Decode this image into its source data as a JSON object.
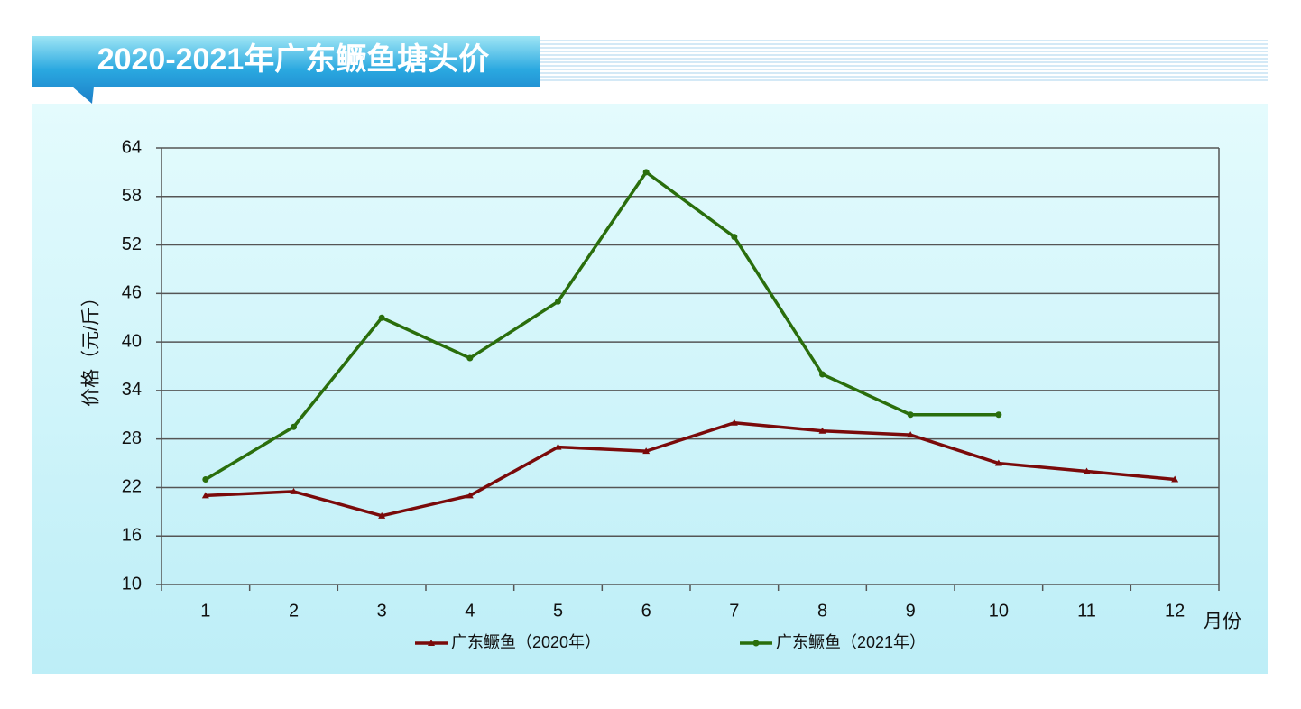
{
  "chart_data": {
    "type": "line",
    "title": "2020-2021年广东鳜鱼塘头价",
    "y_label": "价格（元/斤）",
    "x_label": "月份",
    "categories": [
      "1",
      "2",
      "3",
      "4",
      "5",
      "6",
      "7",
      "8",
      "9",
      "10",
      "11",
      "12"
    ],
    "series": [
      {
        "name": "广东鳜鱼（2020年）",
        "color": "#7a0a0a",
        "marker": "triangle",
        "values": [
          21,
          21.5,
          18.5,
          21,
          27,
          26.5,
          30,
          29,
          28.5,
          25,
          24,
          23
        ]
      },
      {
        "name": "广东鳜鱼（2021年）",
        "color": "#2a6e0c",
        "marker": "circle",
        "values": [
          23,
          29.5,
          43,
          38,
          45,
          61,
          53,
          36,
          31,
          31,
          null,
          null
        ]
      }
    ],
    "ylim": [
      10,
      64
    ],
    "yticks": [
      10,
      16,
      22,
      28,
      34,
      40,
      46,
      52,
      58,
      64
    ],
    "grid": true
  }
}
